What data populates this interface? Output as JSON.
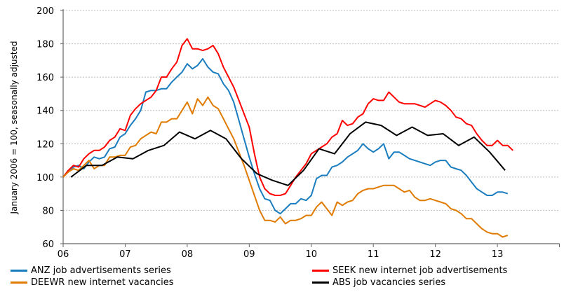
{
  "chart_data": {
    "type": "line",
    "title": "",
    "xlabel": "",
    "ylabel": "January 2006 = 100, seasonally adjusted",
    "ylim": [
      60,
      200
    ],
    "yticks": [
      60,
      80,
      100,
      120,
      140,
      160,
      180,
      200
    ],
    "xticks": [
      "06",
      "07",
      "08",
      "09",
      "10",
      "11",
      "12",
      "13",
      ""
    ],
    "x_unit": "months since January 2006",
    "grid": "horizontal dotted",
    "legend_position": "bottom",
    "series": [
      {
        "name": "ANZ job advertisements series",
        "color": "#1a7dbf",
        "start_month": 0,
        "step": 1,
        "values": [
          100,
          104,
          106,
          107,
          105,
          109,
          112,
          111,
          112,
          117,
          118,
          124,
          126,
          131,
          135,
          140,
          151,
          152,
          152,
          153,
          153,
          157,
          160,
          163,
          168,
          165,
          167,
          171,
          166,
          163,
          162,
          156,
          152,
          145,
          134,
          123,
          112,
          102,
          93,
          87,
          86,
          80,
          78,
          81,
          84,
          84,
          87,
          86,
          89,
          99,
          101,
          101,
          106,
          107,
          109,
          112,
          114,
          116,
          120,
          117,
          115,
          117,
          120,
          111,
          115,
          115,
          113,
          111,
          110,
          109,
          108,
          107,
          109,
          110,
          110,
          106,
          105,
          104,
          101,
          97,
          93,
          91,
          89,
          89,
          91,
          91,
          90
        ]
      },
      {
        "name": "SEEK new internet job advertisements",
        "color": "#ff0000",
        "start_month": 0,
        "step": 1,
        "values": [
          100,
          104,
          107,
          106,
          111,
          114,
          116,
          116,
          118,
          122,
          124,
          129,
          128,
          137,
          141,
          144,
          146,
          148,
          152,
          160,
          160,
          165,
          169,
          179,
          183,
          177,
          177,
          176,
          177,
          179,
          174,
          166,
          160,
          154,
          146,
          138,
          130,
          114,
          100,
          93,
          90,
          89,
          89,
          90,
          95,
          100,
          104,
          108,
          114,
          116,
          118,
          120,
          124,
          126,
          134,
          131,
          132,
          136,
          138,
          144,
          147,
          146,
          146,
          151,
          148,
          145,
          144,
          144,
          144,
          143,
          142,
          144,
          146,
          145,
          143,
          140,
          136,
          135,
          132,
          131,
          126,
          122,
          119,
          119,
          122,
          119,
          119,
          116
        ]
      },
      {
        "name": "DEEWR new internet vacancies",
        "color": "#e07b00",
        "start_month": 0,
        "step": 1,
        "values": [
          100,
          103,
          105,
          104,
          107,
          110,
          105,
          107,
          107,
          112,
          112,
          113,
          113,
          118,
          119,
          123,
          125,
          127,
          126,
          133,
          133,
          135,
          135,
          140,
          145,
          138,
          147,
          143,
          148,
          143,
          141,
          135,
          129,
          123,
          115,
          107,
          98,
          89,
          80,
          74,
          74,
          73,
          76,
          72,
          74,
          74,
          75,
          77,
          77,
          82,
          85,
          81,
          77,
          85,
          83,
          85,
          86,
          90,
          92,
          93,
          93,
          94,
          95,
          95,
          95,
          93,
          91,
          92,
          88,
          86,
          86,
          87,
          86,
          85,
          84,
          81,
          80,
          78,
          75,
          75,
          72,
          69,
          67,
          66,
          66,
          64,
          65
        ]
      },
      {
        "name": "ABS job vacancies series",
        "color": "#000000",
        "start_month": 1.5,
        "step": 3,
        "values": [
          100,
          107,
          107,
          112,
          111,
          116,
          119,
          127,
          123,
          128,
          123,
          111,
          102,
          98,
          95,
          104,
          117,
          114,
          126,
          133,
          131,
          125,
          130,
          125,
          126,
          119,
          124,
          115,
          104
        ]
      }
    ]
  }
}
